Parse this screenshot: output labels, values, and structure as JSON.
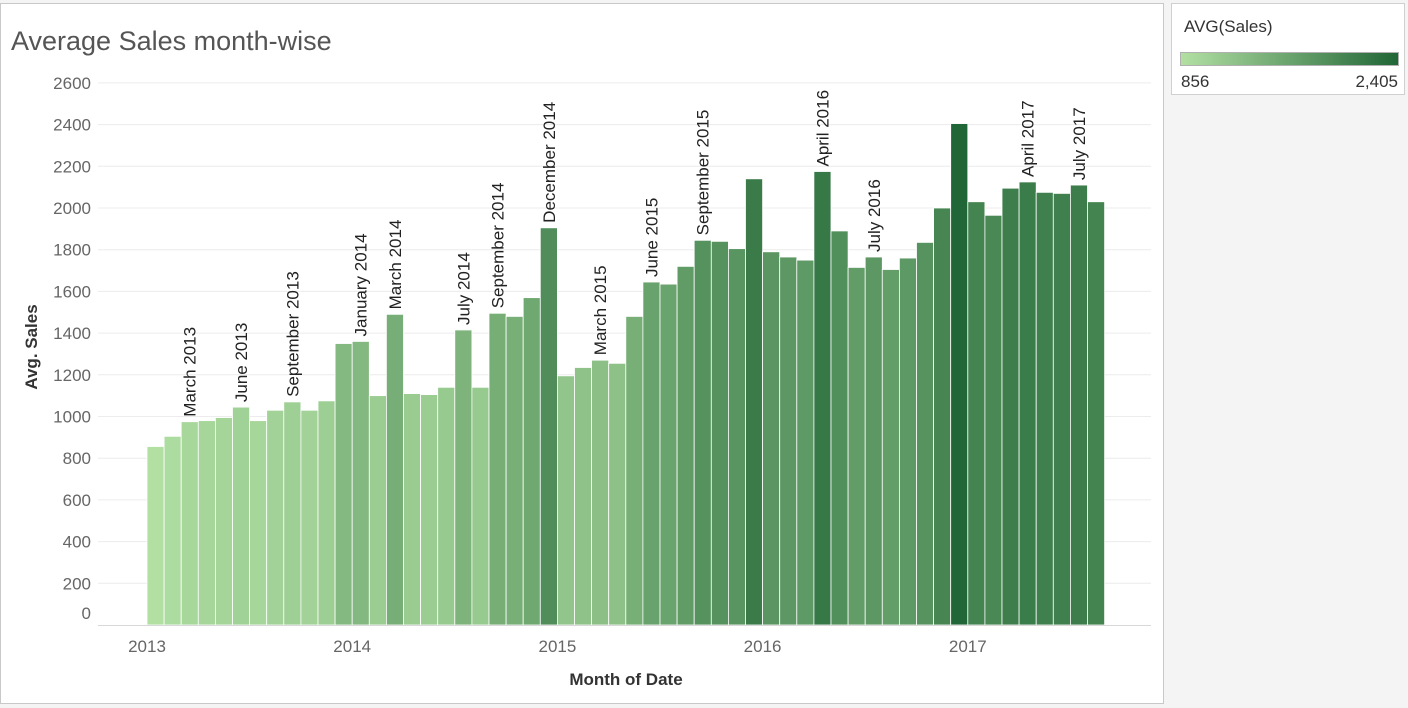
{
  "title": "Average Sales month-wise",
  "legend": {
    "title": "AVG(Sales)",
    "min_label": "856",
    "max_label": "2,405",
    "color_min": "#b2e0a3",
    "color_max": "#216637"
  },
  "chart_data": {
    "type": "bar",
    "title": "Average Sales month-wise",
    "xlabel": "Month of Date",
    "ylabel": "Avg. Sales",
    "ylim": [
      0,
      2600
    ],
    "yticks": [
      0,
      200,
      400,
      600,
      800,
      1000,
      1200,
      1400,
      1600,
      1800,
      2000,
      2200,
      2400,
      2600
    ],
    "x_axis_labels": [
      "2013",
      "2014",
      "2015",
      "2016",
      "2017"
    ],
    "grid": true,
    "legend_position": "top-right",
    "color_scale": {
      "min": 856,
      "max": 2405,
      "min_color": "#b2e0a3",
      "max_color": "#216637"
    },
    "categories": [
      "January 2013",
      "February 2013",
      "March 2013",
      "April 2013",
      "May 2013",
      "June 2013",
      "July 2013",
      "August 2013",
      "September 2013",
      "October 2013",
      "November 2013",
      "December 2013",
      "January 2014",
      "February 2014",
      "March 2014",
      "April 2014",
      "May 2014",
      "June 2014",
      "July 2014",
      "August 2014",
      "September 2014",
      "October 2014",
      "November 2014",
      "December 2014",
      "January 2015",
      "February 2015",
      "March 2015",
      "April 2015",
      "May 2015",
      "June 2015",
      "July 2015",
      "August 2015",
      "September 2015",
      "October 2015",
      "November 2015",
      "December 2015",
      "January 2016",
      "February 2016",
      "March 2016",
      "April 2016",
      "May 2016",
      "June 2016",
      "July 2016",
      "August 2016",
      "September 2016",
      "October 2016",
      "November 2016",
      "December 2016",
      "January 2017",
      "February 2017",
      "March 2017",
      "April 2017",
      "May 2017",
      "June 2017",
      "July 2017",
      "August 2017"
    ],
    "values": [
      856,
      905,
      975,
      980,
      995,
      1045,
      980,
      1030,
      1070,
      1030,
      1075,
      1350,
      1360,
      1100,
      1490,
      1110,
      1105,
      1140,
      1415,
      1140,
      1495,
      1480,
      1570,
      1905,
      1195,
      1235,
      1270,
      1255,
      1480,
      1645,
      1635,
      1720,
      1845,
      1840,
      1805,
      2140,
      1790,
      1765,
      1750,
      2175,
      1890,
      1715,
      1765,
      1705,
      1760,
      1835,
      2000,
      2405,
      2030,
      1965,
      2095,
      2125,
      2075,
      2070,
      2110,
      2030
    ],
    "bar_labels": [
      {
        "index": 2,
        "text": "March 2013"
      },
      {
        "index": 5,
        "text": "June 2013"
      },
      {
        "index": 8,
        "text": "September 2013"
      },
      {
        "index": 12,
        "text": "January 2014"
      },
      {
        "index": 14,
        "text": "March 2014"
      },
      {
        "index": 18,
        "text": "July 2014"
      },
      {
        "index": 20,
        "text": "September 2014"
      },
      {
        "index": 23,
        "text": "December 2014"
      },
      {
        "index": 26,
        "text": "March 2015"
      },
      {
        "index": 29,
        "text": "June 2015"
      },
      {
        "index": 32,
        "text": "September 2015"
      },
      {
        "index": 39,
        "text": "April 2016"
      },
      {
        "index": 42,
        "text": "July 2016"
      },
      {
        "index": 51,
        "text": "April 2017"
      },
      {
        "index": 54,
        "text": "July 2017"
      }
    ]
  }
}
